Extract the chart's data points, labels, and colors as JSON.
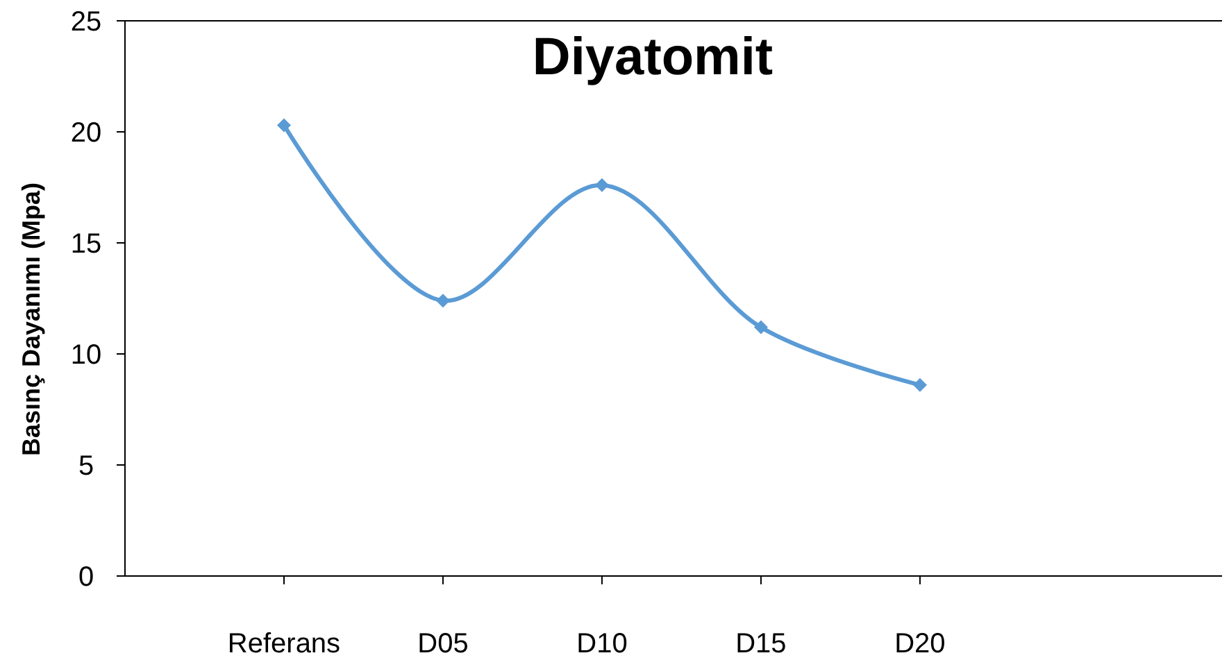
{
  "chart_data": {
    "type": "line",
    "title": "Diyatomit",
    "ylabel": "Basınç Dayanımı (Mpa)",
    "categories": [
      "Referans",
      "D05",
      "D10",
      "D15",
      "D20"
    ],
    "series": [
      {
        "color": "#5b9bd5",
        "values": [
          20.3,
          12.4,
          17.6,
          11.2,
          8.6
        ]
      }
    ],
    "ylim": [
      0,
      25
    ],
    "yticks": [
      0,
      5,
      10,
      15,
      20,
      25
    ],
    "marker": "diamond",
    "line_style": "solid"
  }
}
